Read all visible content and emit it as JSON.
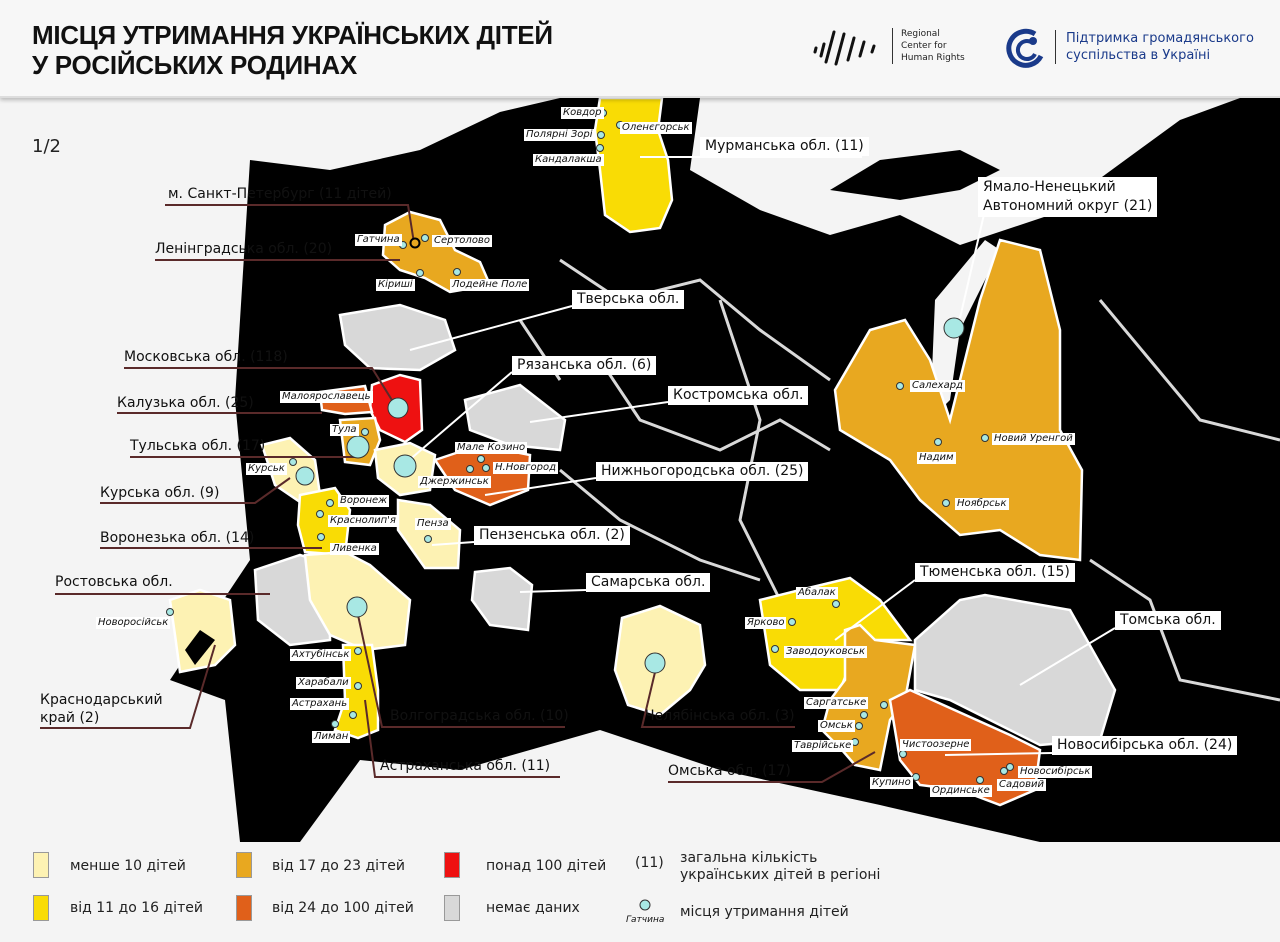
{
  "header": {
    "title_line1": "МІСЦЯ УТРИМАННЯ УКРАЇНСЬКИХ ДІТЕЙ",
    "title_line2": "У РОСІЙСЬКИХ РОДИНАХ",
    "logo_rchr": [
      "Regional",
      "Center for",
      "Human Rights"
    ],
    "logo_support": [
      "Підтримка громадянського",
      "суспільства в Україні"
    ]
  },
  "page_indicator": "1/2",
  "colors": {
    "less_10": "#fdf2b3",
    "11_16": "#f9dc05",
    "17_23": "#e8a820",
    "24_100": "#e0601a",
    "over_100": "#ee1111",
    "no_data": "#d8d8d8",
    "dot": "#a8e8e4"
  },
  "regions": {
    "murmansk": "Мурманська обл. (11)",
    "spb": "м. Санкт-Петербург (11 дітей)",
    "leningrad": "Ленінградська обл. (20)",
    "tver": "Тверська обл.",
    "moscow": "Московська обл. (118)",
    "ryazan": "Рязанська обл. (6)",
    "kaluga": "Калузька обл. (25)",
    "kostroma": "Костромська обл.",
    "tula": "Тульська обл. (17)",
    "nizhny": "Нижньогородська обл. (25)",
    "kursk": "Курська обл. (9)",
    "voronezh": "Воронезька обл. (14)",
    "penza": "Пензенська обл. (2)",
    "rostov": "Ростовська обл.",
    "samara": "Самарська обл.",
    "krasnodar1": "Краснодарський",
    "krasnodar2": "край (2)",
    "volgograd": "Волгоградська обл. (10)",
    "chelyabinsk": "Челябінська обл. (3)",
    "astrakhan": "Астраханська обл. (11)",
    "yamal1": "Ямало-Ненецький",
    "yamal2": "Автономний округ (21)",
    "tyumen": "Тюменська обл. (15)",
    "tomsk": "Томська обл.",
    "omsk": "Омська обл. (17)",
    "novosibirsk": "Новосибірська обл. (24)"
  },
  "cities": {
    "kovdor": "Ковдор",
    "polyarni": "Полярні Зорі",
    "kandalaksha": "Кандалакша",
    "olenegorsk": "Оленєгорськ",
    "gatchina": "Гатчина",
    "sertolovo": "Сертолово",
    "kirishi": "Кіриші",
    "lodeine": "Лодейне Поле",
    "maloyaroslavets": "Малоярославець",
    "tula": "Тула",
    "kursk": "Курськ",
    "male_kozino": "Мале Козино",
    "nnovgorod": "Н.Новгород",
    "dzerzhinsk": "Джержинськ",
    "voronezh": "Воронеж",
    "krasnolipya": "Краснолип'я",
    "livenka": "Ливенка",
    "penza": "Пенза",
    "novorossiysk": "Новоросійськ",
    "akhtubinsk": "Ахтубінськ",
    "kharabali": "Харабали",
    "astrakhan": "Астрахань",
    "liman": "Лиман",
    "salekhard": "Салехард",
    "nadym": "Надим",
    "novy_urengoy": "Новий Уренгой",
    "noyabrsk": "Ноябрськ",
    "abalak": "Абалак",
    "yarkovo": "Ярково",
    "zavodoukovsk": "Заводоуковськ",
    "sargatske": "Саргатське",
    "omsk": "Омськ",
    "tavriiske": "Таврійське",
    "chystoozerne": "Чистоозерне",
    "kupino": "Купино",
    "ordynske": "Ординське",
    "sadovyi": "Садовий",
    "novosibirsk": "Новосибірськ"
  },
  "legend": {
    "less_10": "менше 10 дітей",
    "11_16": "від 11 до 16 дітей",
    "17_23": "від 17 до 23 дітей",
    "24_100": "від 24 до 100 дітей",
    "over_100": "понад 100 дітей",
    "no_data": "немає даних",
    "count_example": "(11)",
    "count_desc1": "загальна кількість",
    "count_desc2": "українських дітей в регіоні",
    "dot_example": "Гатчина",
    "dot_desc": "місця утримання дітей"
  }
}
